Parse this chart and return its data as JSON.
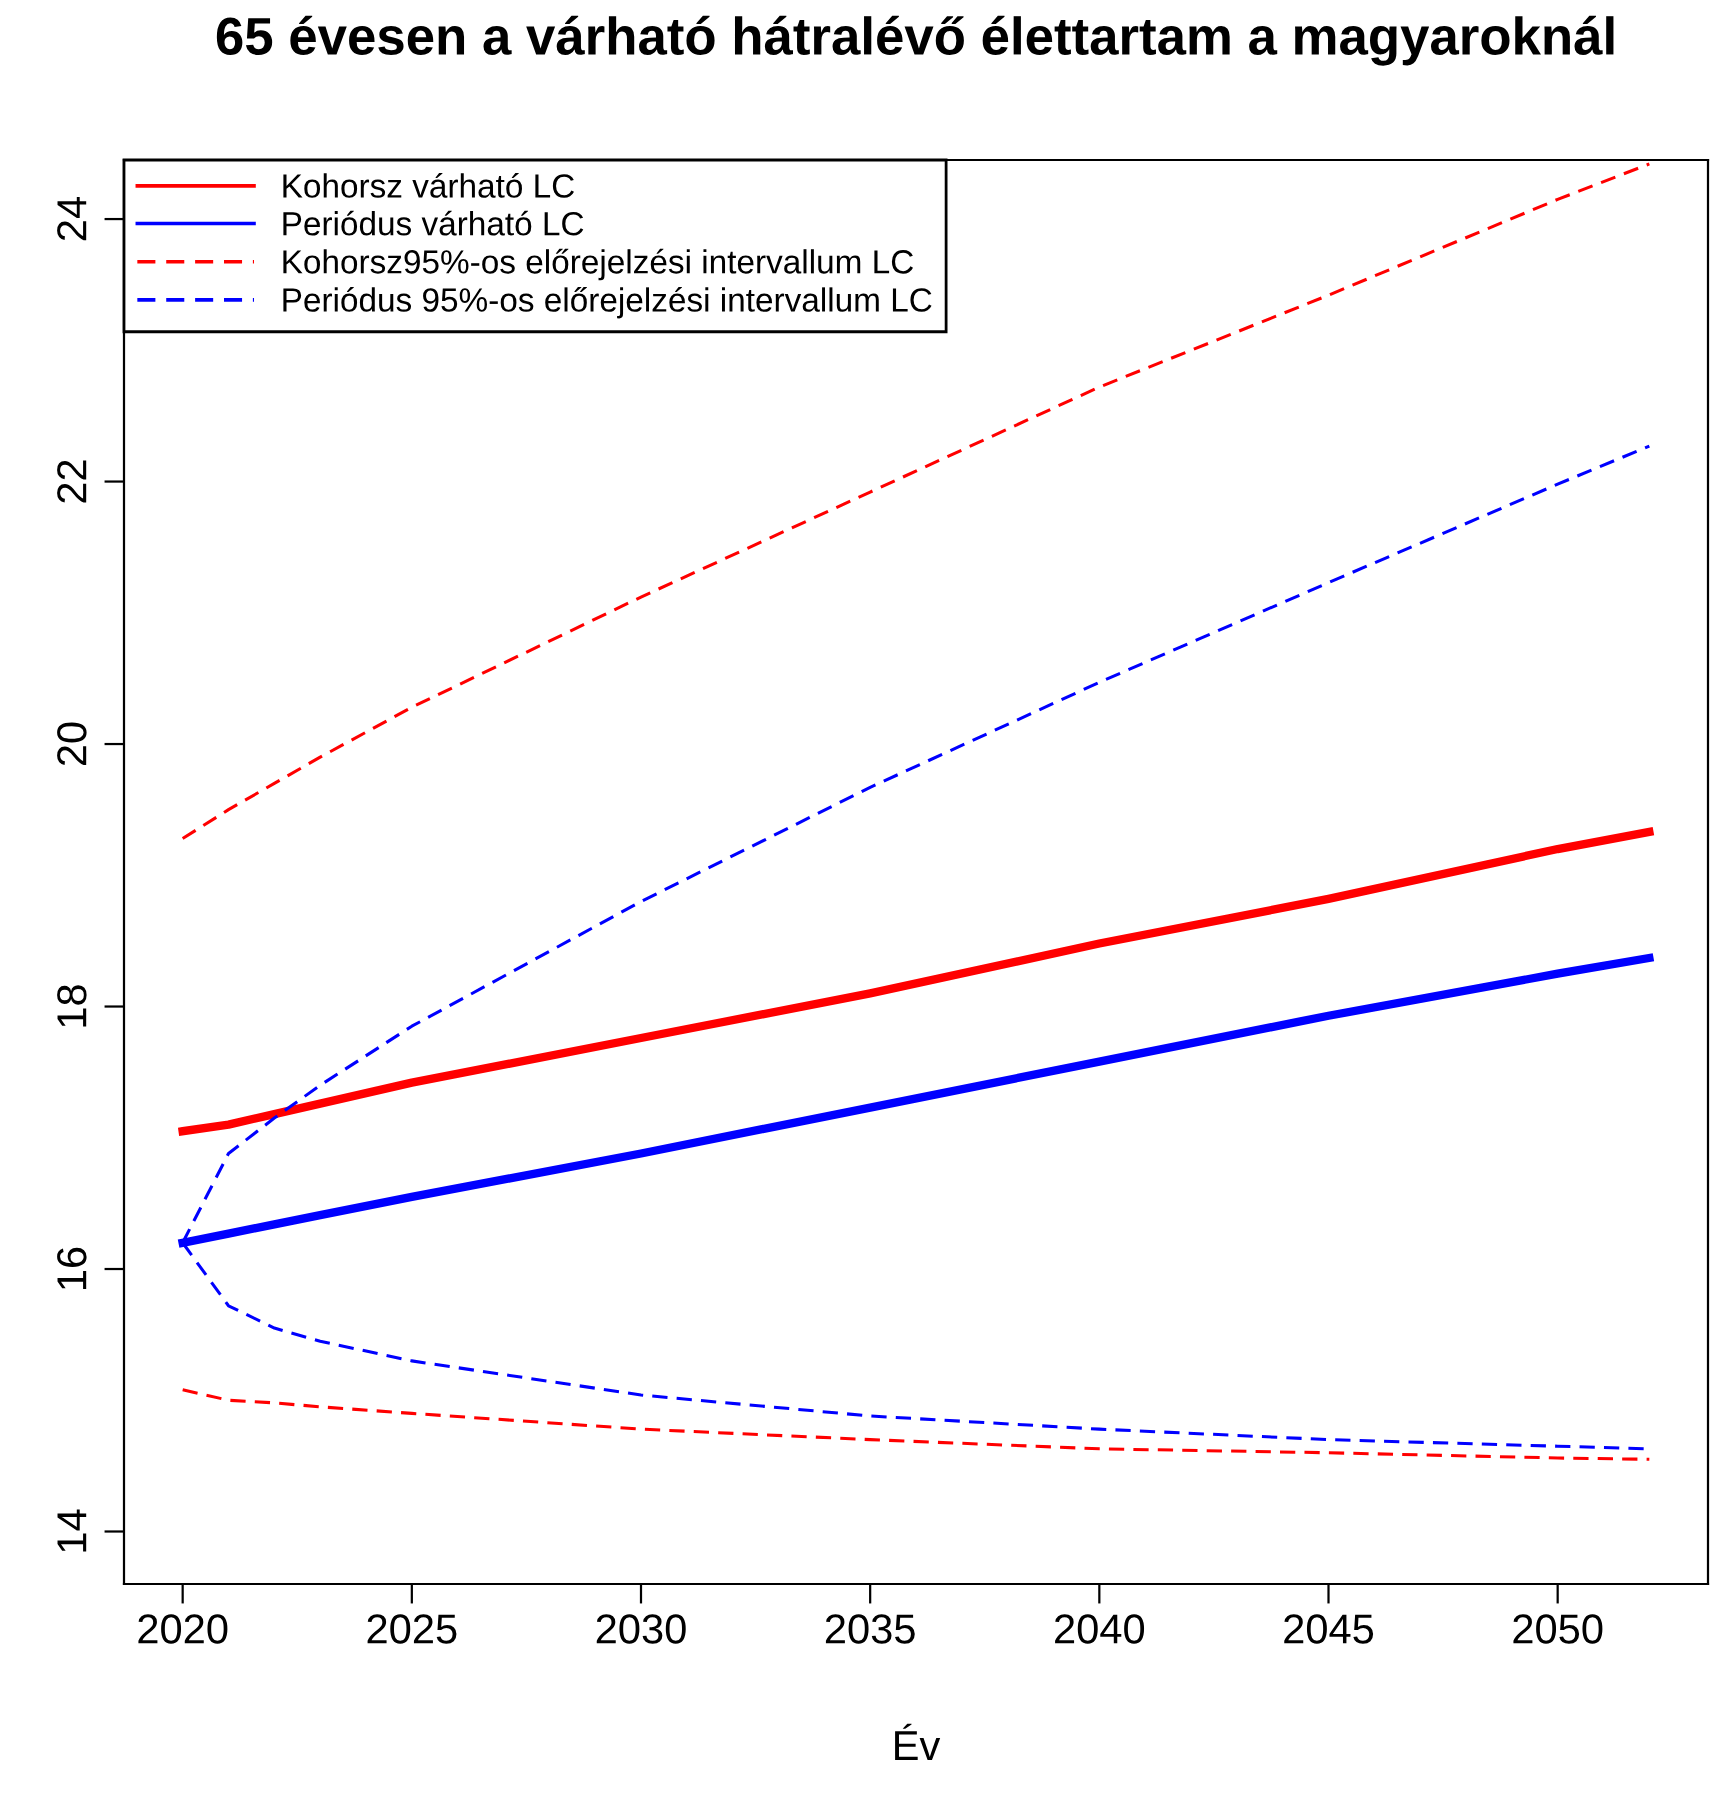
{
  "chart_data": {
    "type": "line",
    "title": "65 évesen a várható hátralévő élettartam a magyaroknál",
    "xlabel": "Év",
    "x": [
      2020,
      2021,
      2022,
      2023,
      2025,
      2030,
      2035,
      2040,
      2045,
      2050,
      2052
    ],
    "series": [
      {
        "name": "Kohorsz várható LC",
        "color": "#ff0000",
        "line_style": "solid",
        "values": [
          17.05,
          17.1,
          17.18,
          17.26,
          17.42,
          17.76,
          18.1,
          18.48,
          18.82,
          19.2,
          19.33
        ]
      },
      {
        "name": "Periódus várható LC",
        "color": "#0000ff",
        "line_style": "solid",
        "values": [
          16.2,
          16.27,
          16.34,
          16.41,
          16.55,
          16.88,
          17.23,
          17.58,
          17.93,
          18.25,
          18.37
        ]
      },
      {
        "name": "Kohorsz95%-os előrejelzési intervallum LC",
        "color": "#ff0000",
        "line_style": "dashed",
        "values": [
          19.28,
          19.5,
          19.7,
          19.9,
          20.28,
          21.12,
          21.92,
          22.72,
          23.42,
          24.15,
          24.42
        ]
      },
      {
        "name": "Periódus 95%-os előrejelzési intervallum LC",
        "color": "#0000ff",
        "line_style": "dashed",
        "values": [
          16.2,
          16.88,
          17.15,
          17.4,
          17.85,
          18.8,
          19.67,
          20.47,
          21.23,
          21.98,
          22.27
        ]
      },
      {
        "color": "#ff0000",
        "line_style": "dashed",
        "values": [
          15.08,
          15.0,
          14.98,
          14.95,
          14.9,
          14.78,
          14.7,
          14.63,
          14.6,
          14.56,
          14.55
        ]
      },
      {
        "color": "#0000ff",
        "line_style": "dashed",
        "values": [
          16.2,
          15.72,
          15.55,
          15.45,
          15.3,
          15.04,
          14.88,
          14.78,
          14.7,
          14.65,
          14.63
        ]
      }
    ],
    "xlim": [
      2018.72,
      2053.28
    ],
    "ylim": [
      13.6,
      24.45
    ],
    "xticks": [
      2020,
      2025,
      2030,
      2035,
      2040,
      2045,
      2050
    ],
    "yticks": [
      14,
      16,
      18,
      20,
      22,
      24
    ],
    "grid": false,
    "legend": "top left"
  }
}
